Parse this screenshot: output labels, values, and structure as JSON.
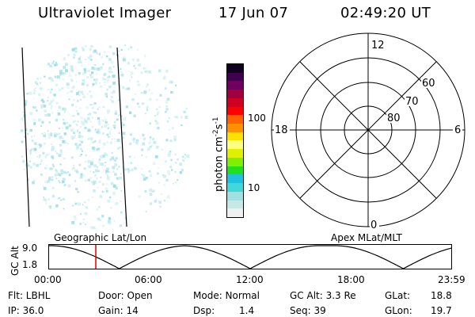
{
  "header": {
    "instrument": "Ultraviolet Imager",
    "date": "17 Jun 07",
    "time": "02:49:20 UT"
  },
  "colorbar": {
    "label": "photon cm",
    "label_sup1": "-2",
    "label_mid": "s",
    "label_sup2": "-1",
    "ticks": [
      "100",
      "10"
    ],
    "colors": [
      "#f0f0f0",
      "#c8e8e8",
      "#a0e0e0",
      "#40d8d8",
      "#20c0e0",
      "#20e020",
      "#80f000",
      "#e0f000",
      "#ffff80",
      "#ffe000",
      "#ff9000",
      "#ff6000",
      "#ff0000",
      "#d00020",
      "#a00040",
      "#700060",
      "#400050",
      "#100020"
    ]
  },
  "polar": {
    "mlt_labels": [
      "12",
      "18",
      "6",
      "0"
    ],
    "lat_labels": [
      "60",
      "70",
      "80"
    ]
  },
  "timeline": {
    "ylabel": "GC Alt",
    "y_values": [
      "9.0",
      "1.8"
    ],
    "left_title": "Geographic Lat/Lon",
    "right_title": "Apex MLat/MLT",
    "x_ticks": [
      "00:00",
      "06:00",
      "12:00",
      "18:00",
      "23:59"
    ],
    "marker_color": "#e00000"
  },
  "status": {
    "flt": "Flt: LBHL",
    "ip": "IP: 36.0",
    "door": "Door: Open",
    "gain": "Gain: 14",
    "mode": "Mode: Normal",
    "dsp_label": "Dsp:",
    "dsp_value": "1.4",
    "gcalt": "GC Alt: 3.3 Re",
    "seq": "Seq: 39",
    "glat_label": "GLat:",
    "glat_value": "18.8",
    "glon_label": "GLon:",
    "glon_value": "19.7"
  }
}
